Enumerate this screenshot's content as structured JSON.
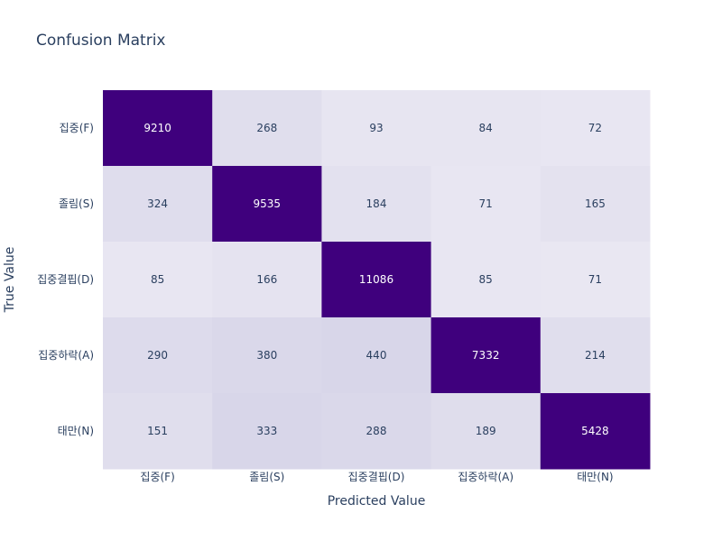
{
  "chart_data": {
    "type": "heatmap",
    "title": "Confusion Matrix",
    "xlabel": "Predicted Value",
    "ylabel": "True Value",
    "x_categories": [
      "집중(F)",
      "졸림(S)",
      "집중결핍(D)",
      "집중하락(A)",
      "태만(N)"
    ],
    "y_categories": [
      "집중(F)",
      "졸림(S)",
      "집중결핍(D)",
      "집중하락(A)",
      "태만(N)"
    ],
    "values": [
      [
        9210,
        268,
        93,
        84,
        72
      ],
      [
        324,
        9535,
        184,
        71,
        165
      ],
      [
        85,
        166,
        11086,
        85,
        71
      ],
      [
        290,
        380,
        440,
        7332,
        214
      ],
      [
        151,
        333,
        288,
        189,
        5428
      ]
    ],
    "colorscale": "Purples",
    "colors": {
      "low": "#f2f0f7",
      "high": "#3f007d"
    }
  }
}
